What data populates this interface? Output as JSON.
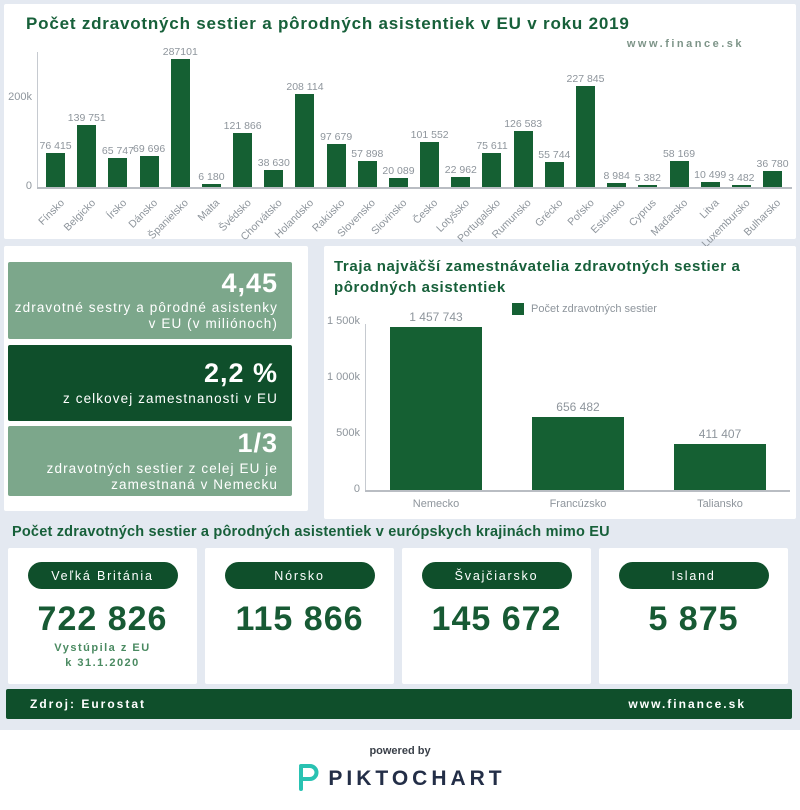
{
  "colors": {
    "page_bg": "#e4e9f1",
    "bar_green": "#156033",
    "dark_green": "#0f4f2b",
    "sage_green": "#7ca78b",
    "title_green": "#17603a",
    "label_gray": "#8e959c",
    "brand_teal": "#29c2b2",
    "brand_navy": "#232e47"
  },
  "header": {
    "title": "Počet zdravotných sestier a pôrodných asistentiek v EU v roku 2019",
    "site": "www.finance.sk"
  },
  "chart_data": [
    {
      "id": "eu",
      "type": "bar",
      "title": "Počet zdravotných sestier a pôrodných asistentiek v EU v roku 2019",
      "categories": [
        "Fínsko",
        "Belgicko",
        "Írsko",
        "Dánsko",
        "Španielsko",
        "Malta",
        "Švédsko",
        "Chorvátsko",
        "Holandsko",
        "Rakúsko",
        "Slovensko",
        "Slovinsko",
        "Česko",
        "Lotyšsko",
        "Portugalsko",
        "Rumunsko",
        "Grécko",
        "Poľsko",
        "Estónsko",
        "Cyprus",
        "Maďarsko",
        "Litva",
        "Luxembursko",
        "Bulharsko"
      ],
      "values": [
        76415,
        139751,
        65747,
        69696,
        287101,
        6180,
        121866,
        38630,
        208114,
        97679,
        57898,
        20089,
        101552,
        22962,
        75611,
        126583,
        55744,
        227845,
        8984,
        5382,
        58169,
        10499,
        3482,
        36780
      ],
      "value_labels": [
        "76 415",
        "139 751",
        "65 747",
        "69 696",
        "287101",
        "6 180",
        "121 866",
        "38 630",
        "208 114",
        "97 679",
        "57 898",
        "20 089",
        "101 552",
        "22 962",
        "75 611",
        "126 583",
        "55 744",
        "227 845",
        "8 984",
        "5 382",
        "58 169",
        "10 499",
        "3 482",
        "36 780"
      ],
      "yticks": [
        {
          "label": "200k",
          "value": 200000
        },
        {
          "label": "0",
          "value": 0
        }
      ],
      "ylim": [
        0,
        312000
      ],
      "grid": false,
      "legend": null,
      "legend_position": null
    },
    {
      "id": "top3",
      "type": "bar",
      "title": "Traja najväčší zamestnávatelia zdravotných sestier a pôrodných asistentiek",
      "legend": "Počet zdravotných sestier",
      "legend_position": "top",
      "categories": [
        "Nemecko",
        "Francúzsko",
        "Taliansko"
      ],
      "values": [
        1457743,
        656482,
        411407
      ],
      "value_labels": [
        "1 457 743",
        "656 482",
        "411 407"
      ],
      "yticks": [
        {
          "label": "1 500k",
          "value": 1500000
        },
        {
          "label": "1 000k",
          "value": 1000000
        },
        {
          "label": "500k",
          "value": 500000
        },
        {
          "label": "0",
          "value": 0
        }
      ],
      "ylim": [
        0,
        1500000
      ],
      "grid": false
    }
  ],
  "stats": [
    {
      "value": "4,45",
      "desc": "zdravotné sestry a pôrodné asistenky v EU (v miliónoch)",
      "style": "sage"
    },
    {
      "value": "2,2 %",
      "desc": "z celkovej zamestnanosti v EU",
      "style": "dark"
    },
    {
      "value": "1/3",
      "desc": "zdravotných sestier z celej EU je zamestnaná v Nemecku",
      "style": "sage"
    }
  ],
  "outside_eu": {
    "title": "Počet zdravotných sestier a pôrodných asistentiek v európskych krajinách mimo EU",
    "cards": [
      {
        "country": "Veľká Británia",
        "value": "722 826",
        "note_line1": "Vystúpila z EU",
        "note_line2": "k 31.1.2020"
      },
      {
        "country": "Nórsko",
        "value": "115 866"
      },
      {
        "country": "Švajčiarsko",
        "value": "145 672"
      },
      {
        "country": "Island",
        "value": "5 875"
      }
    ]
  },
  "footer": {
    "source": "Zdroj: Eurostat",
    "site": "www.finance.sk"
  },
  "branding": {
    "powered_by": "powered by",
    "brand": "PIKTOCHART"
  }
}
